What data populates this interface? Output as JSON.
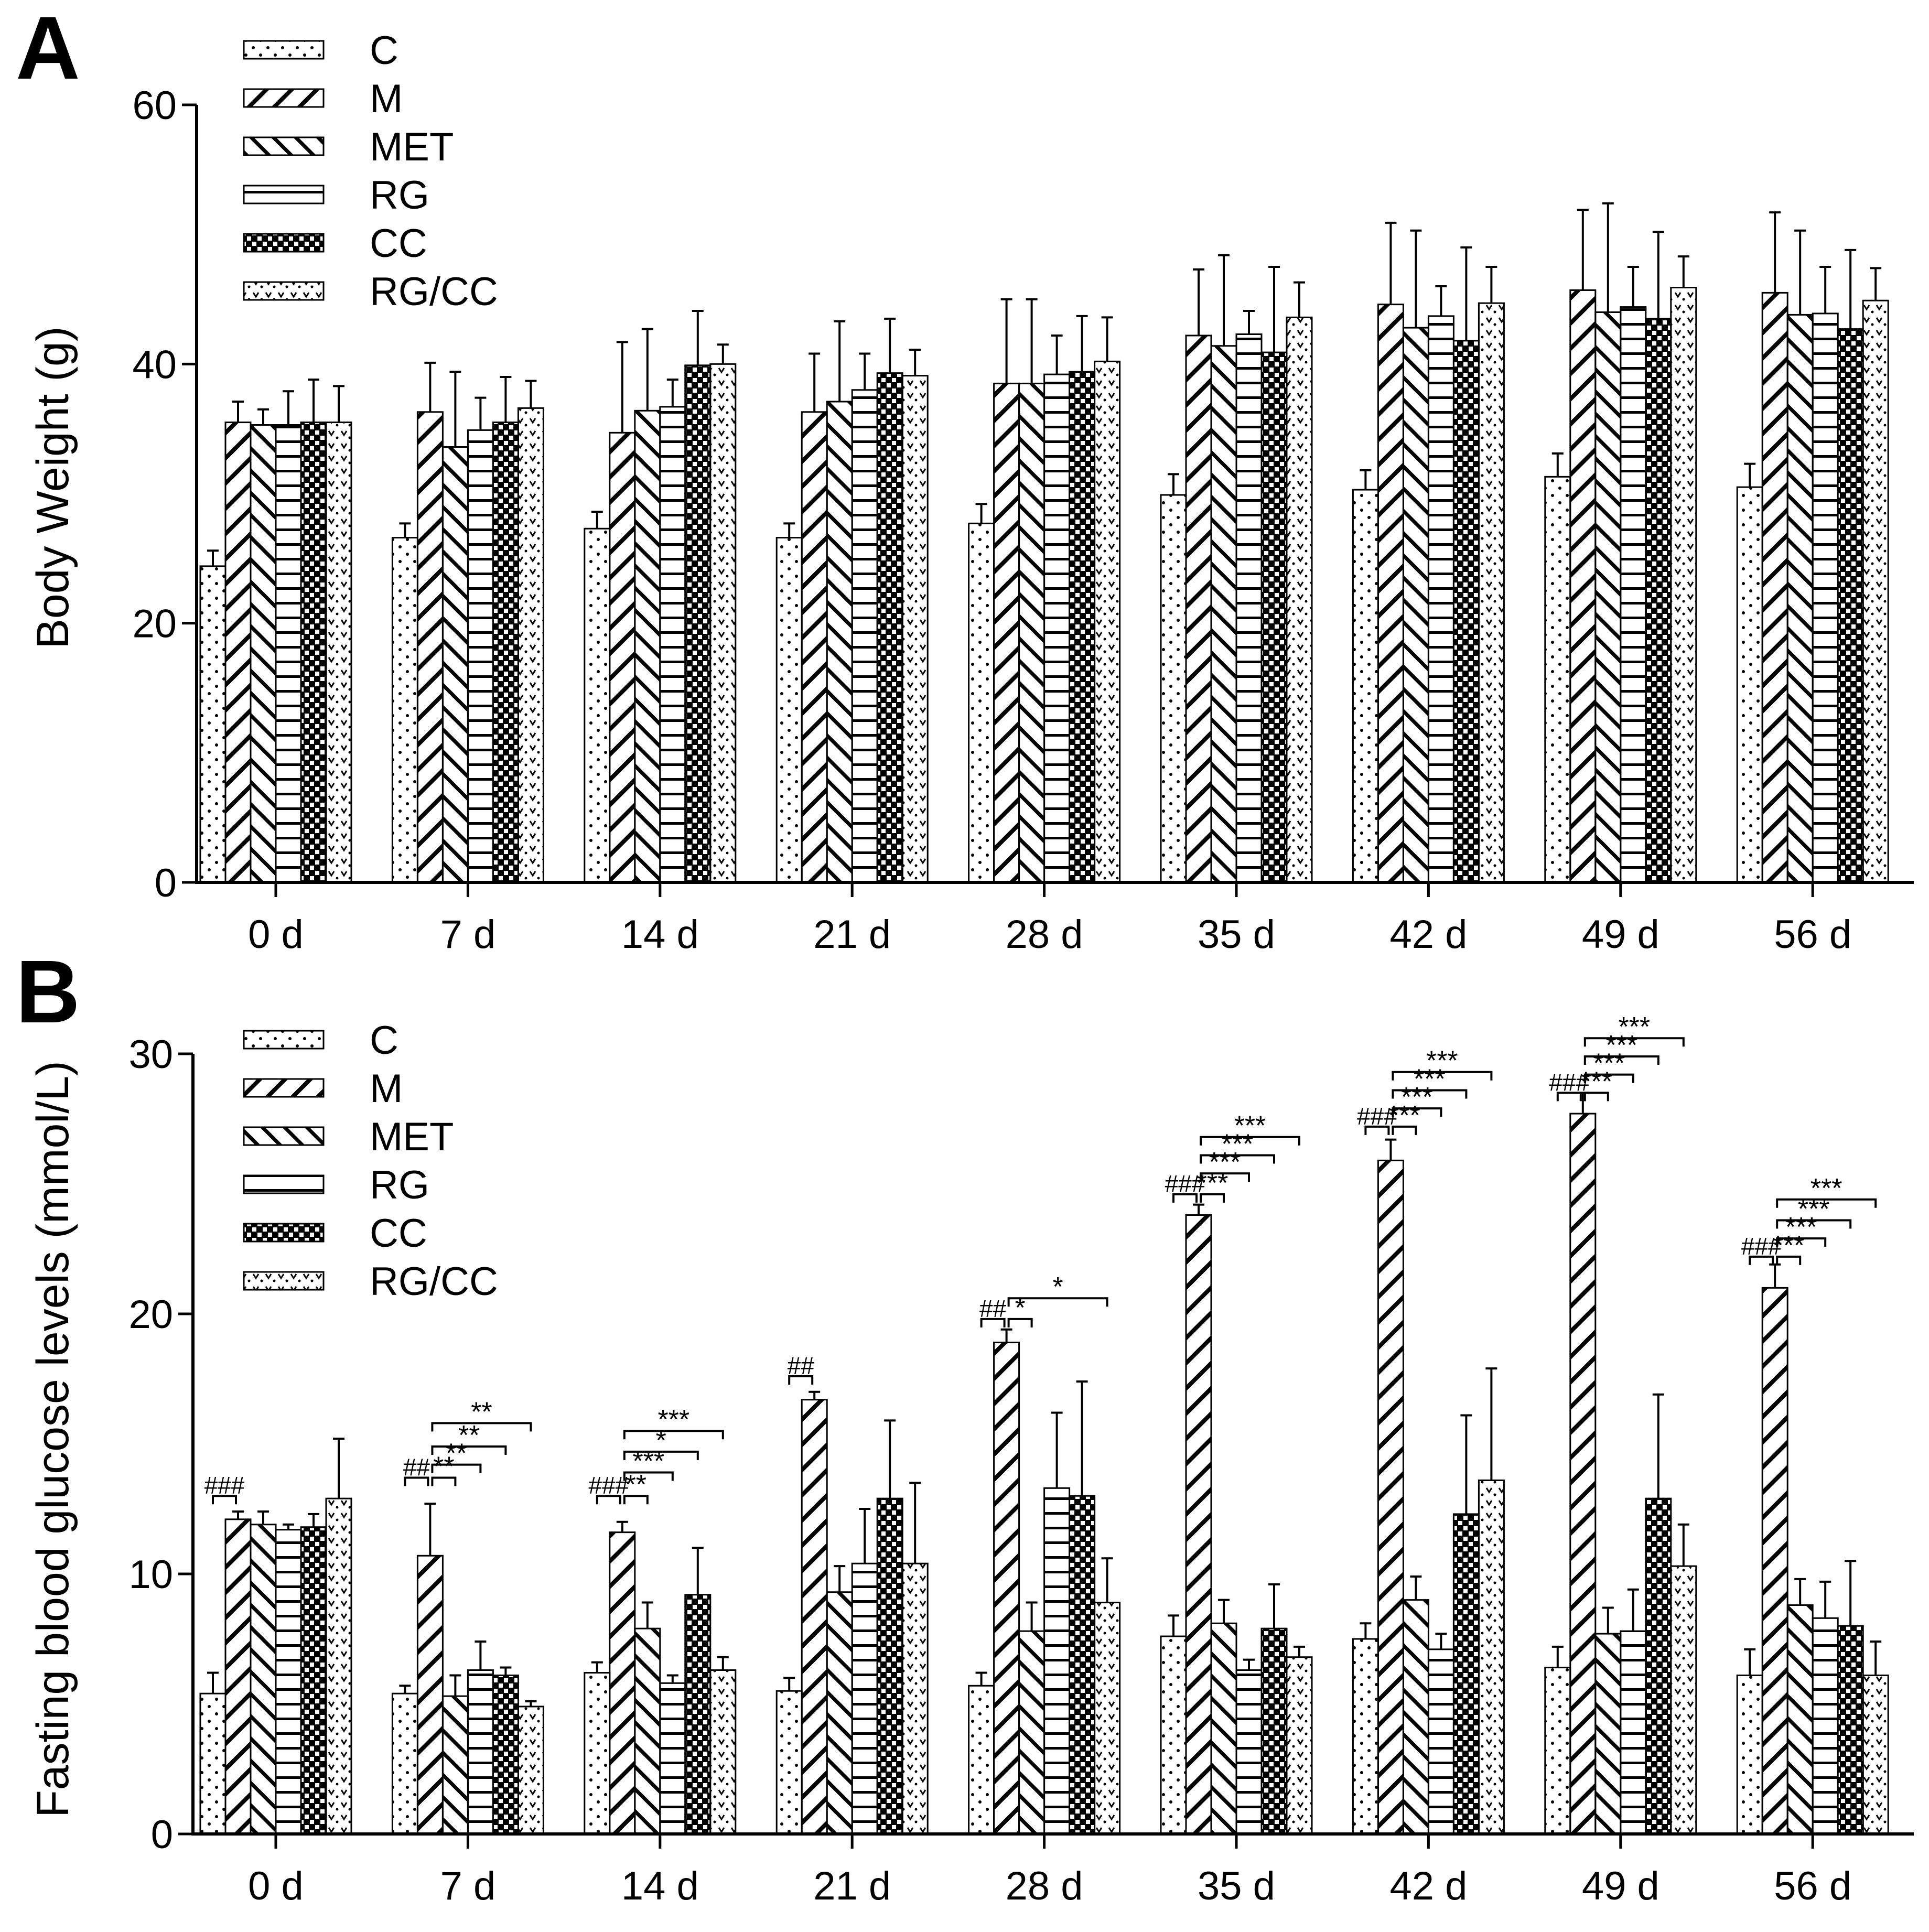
{
  "colors": {
    "ink": "#000000",
    "background": "#ffffff"
  },
  "legend": [
    {
      "name": "C",
      "pattern": "dots"
    },
    {
      "name": "M",
      "pattern": "diag-up"
    },
    {
      "name": "MET",
      "pattern": "diag-down"
    },
    {
      "name": "RG",
      "pattern": "horizontal"
    },
    {
      "name": "CC",
      "pattern": "checker"
    },
    {
      "name": "RG/CC",
      "pattern": "vdots"
    }
  ],
  "chart_data": [
    {
      "panel_label": "A",
      "type": "bar",
      "title": "",
      "xlabel": "",
      "ylabel": "Body Weight (g)",
      "ylim": [
        0,
        60
      ],
      "yticks": [
        0,
        20,
        40,
        60
      ],
      "grid": false,
      "legend_position": "top-left",
      "categories": [
        "0 d",
        "7 d",
        "14 d",
        "21 d",
        "28 d",
        "35 d",
        "42 d",
        "49 d",
        "56 d"
      ],
      "series": [
        {
          "name": "C",
          "values": [
            24.4,
            26.6,
            27.3,
            26.6,
            27.7,
            29.9,
            30.3,
            31.3,
            30.5
          ],
          "errors": [
            1.2,
            1.1,
            1.3,
            1.1,
            1.5,
            1.6,
            1.5,
            1.8,
            1.8
          ]
        },
        {
          "name": "M",
          "values": [
            35.5,
            36.3,
            34.7,
            36.3,
            38.5,
            42.2,
            44.6,
            45.7,
            45.5
          ],
          "errors": [
            1.6,
            3.8,
            7.0,
            4.5,
            6.5,
            5.1,
            6.3,
            6.2,
            6.2
          ]
        },
        {
          "name": "MET",
          "values": [
            35.3,
            33.6,
            36.4,
            37.1,
            38.5,
            41.4,
            42.8,
            44.0,
            43.8
          ],
          "errors": [
            1.2,
            5.8,
            6.3,
            6.2,
            6.5,
            7.0,
            7.5,
            8.4,
            6.5
          ]
        },
        {
          "name": "RG",
          "values": [
            35.3,
            34.9,
            36.7,
            38.0,
            39.2,
            42.3,
            43.7,
            44.4,
            43.9
          ],
          "errors": [
            2.6,
            2.5,
            2.1,
            2.8,
            3.0,
            1.8,
            2.3,
            3.1,
            3.6
          ]
        },
        {
          "name": "CC",
          "values": [
            35.5,
            35.5,
            39.9,
            39.3,
            39.4,
            40.9,
            41.8,
            43.5,
            42.7
          ],
          "errors": [
            3.3,
            3.5,
            4.2,
            4.2,
            4.3,
            6.6,
            7.2,
            6.7,
            6.1
          ]
        },
        {
          "name": "RG/CC",
          "values": [
            35.5,
            36.6,
            40.0,
            39.1,
            40.2,
            43.6,
            44.7,
            45.9,
            44.9
          ],
          "errors": [
            2.8,
            2.1,
            1.5,
            2.0,
            3.4,
            2.7,
            2.8,
            2.4,
            2.5
          ]
        }
      ],
      "annotations": []
    },
    {
      "panel_label": "B",
      "type": "bar",
      "title": "",
      "xlabel": "",
      "ylabel": "Fasting blood glucose levels (mmol/L)",
      "ylim": [
        0,
        30
      ],
      "yticks": [
        0,
        10,
        20,
        30
      ],
      "grid": false,
      "legend_position": "top-left",
      "categories": [
        "0 d",
        "7 d",
        "14 d",
        "21 d",
        "28 d",
        "35 d",
        "42 d",
        "49 d",
        "56 d"
      ],
      "series": [
        {
          "name": "C",
          "values": [
            5.4,
            5.4,
            6.2,
            5.5,
            5.7,
            7.6,
            7.5,
            6.4,
            6.1
          ],
          "errors": [
            0.8,
            0.3,
            0.4,
            0.5,
            0.5,
            0.8,
            0.6,
            0.8,
            1.0
          ]
        },
        {
          "name": "M",
          "values": [
            12.1,
            10.7,
            11.6,
            16.7,
            18.9,
            23.8,
            25.9,
            27.7,
            21.0
          ],
          "errors": [
            0.3,
            2.0,
            0.4,
            0.3,
            0.5,
            0.4,
            0.8,
            0.8,
            0.9
          ]
        },
        {
          "name": "MET",
          "values": [
            11.9,
            5.3,
            7.9,
            9.3,
            7.8,
            8.1,
            9.0,
            7.7,
            8.8
          ],
          "errors": [
            0.5,
            0.8,
            1.0,
            1.0,
            1.1,
            0.9,
            0.9,
            1.0,
            1.0
          ]
        },
        {
          "name": "RG",
          "values": [
            11.7,
            6.3,
            5.8,
            10.4,
            13.3,
            6.3,
            7.1,
            7.8,
            8.3
          ],
          "errors": [
            0.2,
            1.1,
            0.3,
            2.1,
            2.9,
            0.4,
            0.6,
            1.6,
            1.4
          ]
        },
        {
          "name": "CC",
          "values": [
            11.8,
            6.1,
            9.2,
            12.9,
            13.0,
            7.9,
            12.3,
            12.9,
            8.0
          ],
          "errors": [
            0.5,
            0.3,
            1.8,
            3.0,
            4.4,
            1.7,
            3.8,
            4.0,
            2.5
          ]
        },
        {
          "name": "RG/CC",
          "values": [
            12.9,
            4.9,
            6.3,
            10.4,
            8.9,
            6.8,
            13.6,
            10.3,
            6.1
          ],
          "errors": [
            2.3,
            0.2,
            0.5,
            3.1,
            1.7,
            0.4,
            4.3,
            1.6,
            1.3
          ]
        }
      ],
      "annotations": [
        {
          "category": "0 d",
          "from": "C",
          "to": "M",
          "level": 13.0,
          "label": "###"
        },
        {
          "category": "7 d",
          "from": "C",
          "to": "M",
          "level": 13.7,
          "label": "##"
        },
        {
          "category": "7 d",
          "from": "M",
          "to": "MET",
          "level": 13.7,
          "label": "**"
        },
        {
          "category": "7 d",
          "from": "M",
          "to": "RG",
          "level": 14.2,
          "label": "**"
        },
        {
          "category": "7 d",
          "from": "M",
          "to": "CC",
          "level": 14.9,
          "label": "**"
        },
        {
          "category": "7 d",
          "from": "M",
          "to": "RG/CC",
          "level": 15.8,
          "label": "**"
        },
        {
          "category": "14 d",
          "from": "C",
          "to": "M",
          "level": 13.0,
          "label": "###"
        },
        {
          "category": "14 d",
          "from": "M",
          "to": "MET",
          "level": 13.0,
          "label": "**"
        },
        {
          "category": "14 d",
          "from": "M",
          "to": "RG",
          "level": 13.9,
          "label": "***"
        },
        {
          "category": "14 d",
          "from": "M",
          "to": "CC",
          "level": 14.7,
          "label": "*"
        },
        {
          "category": "14 d",
          "from": "M",
          "to": "RG/CC",
          "level": 15.5,
          "label": "***"
        },
        {
          "category": "21 d",
          "from": "C",
          "to": "M",
          "level": 17.6,
          "label": "##"
        },
        {
          "category": "28 d",
          "from": "C",
          "to": "M",
          "level": 19.8,
          "label": "##"
        },
        {
          "category": "28 d",
          "from": "M",
          "to": "MET",
          "level": 19.8,
          "label": "*"
        },
        {
          "category": "28 d",
          "from": "M",
          "to": "RG/CC",
          "level": 20.6,
          "label": "*"
        },
        {
          "category": "35 d",
          "from": "C",
          "to": "M",
          "level": 24.6,
          "label": "###"
        },
        {
          "category": "35 d",
          "from": "M",
          "to": "MET",
          "level": 24.6,
          "label": "***"
        },
        {
          "category": "35 d",
          "from": "M",
          "to": "RG",
          "level": 25.4,
          "label": "***"
        },
        {
          "category": "35 d",
          "from": "M",
          "to": "CC",
          "level": 26.1,
          "label": "***"
        },
        {
          "category": "35 d",
          "from": "M",
          "to": "RG/CC",
          "level": 26.8,
          "label": "***"
        },
        {
          "category": "42 d",
          "from": "C",
          "to": "M",
          "level": 27.2,
          "label": "###"
        },
        {
          "category": "42 d",
          "from": "M",
          "to": "MET",
          "level": 27.2,
          "label": "***"
        },
        {
          "category": "42 d",
          "from": "M",
          "to": "RG",
          "level": 27.9,
          "label": "***"
        },
        {
          "category": "42 d",
          "from": "M",
          "to": "CC",
          "level": 28.6,
          "label": "***"
        },
        {
          "category": "42 d",
          "from": "M",
          "to": "RG/CC",
          "level": 29.3,
          "label": "***"
        },
        {
          "category": "49 d",
          "from": "C",
          "to": "M",
          "level": 28.5,
          "label": "###"
        },
        {
          "category": "49 d",
          "from": "M",
          "to": "MET",
          "level": 28.5,
          "label": "***"
        },
        {
          "category": "49 d",
          "from": "M",
          "to": "RG",
          "level": 29.2,
          "label": "***"
        },
        {
          "category": "49 d",
          "from": "M",
          "to": "CC",
          "level": 29.9,
          "label": "***"
        },
        {
          "category": "49 d",
          "from": "M",
          "to": "RG/CC",
          "level": 30.6,
          "label": "***"
        },
        {
          "category": "56 d",
          "from": "C",
          "to": "M",
          "level": 22.2,
          "label": "###"
        },
        {
          "category": "56 d",
          "from": "M",
          "to": "MET",
          "level": 22.2,
          "label": "***"
        },
        {
          "category": "56 d",
          "from": "M",
          "to": "RG",
          "level": 22.9,
          "label": "***"
        },
        {
          "category": "56 d",
          "from": "M",
          "to": "CC",
          "level": 23.6,
          "label": "***"
        },
        {
          "category": "56 d",
          "from": "M",
          "to": "RG/CC",
          "level": 24.4,
          "label": "***"
        }
      ]
    }
  ]
}
